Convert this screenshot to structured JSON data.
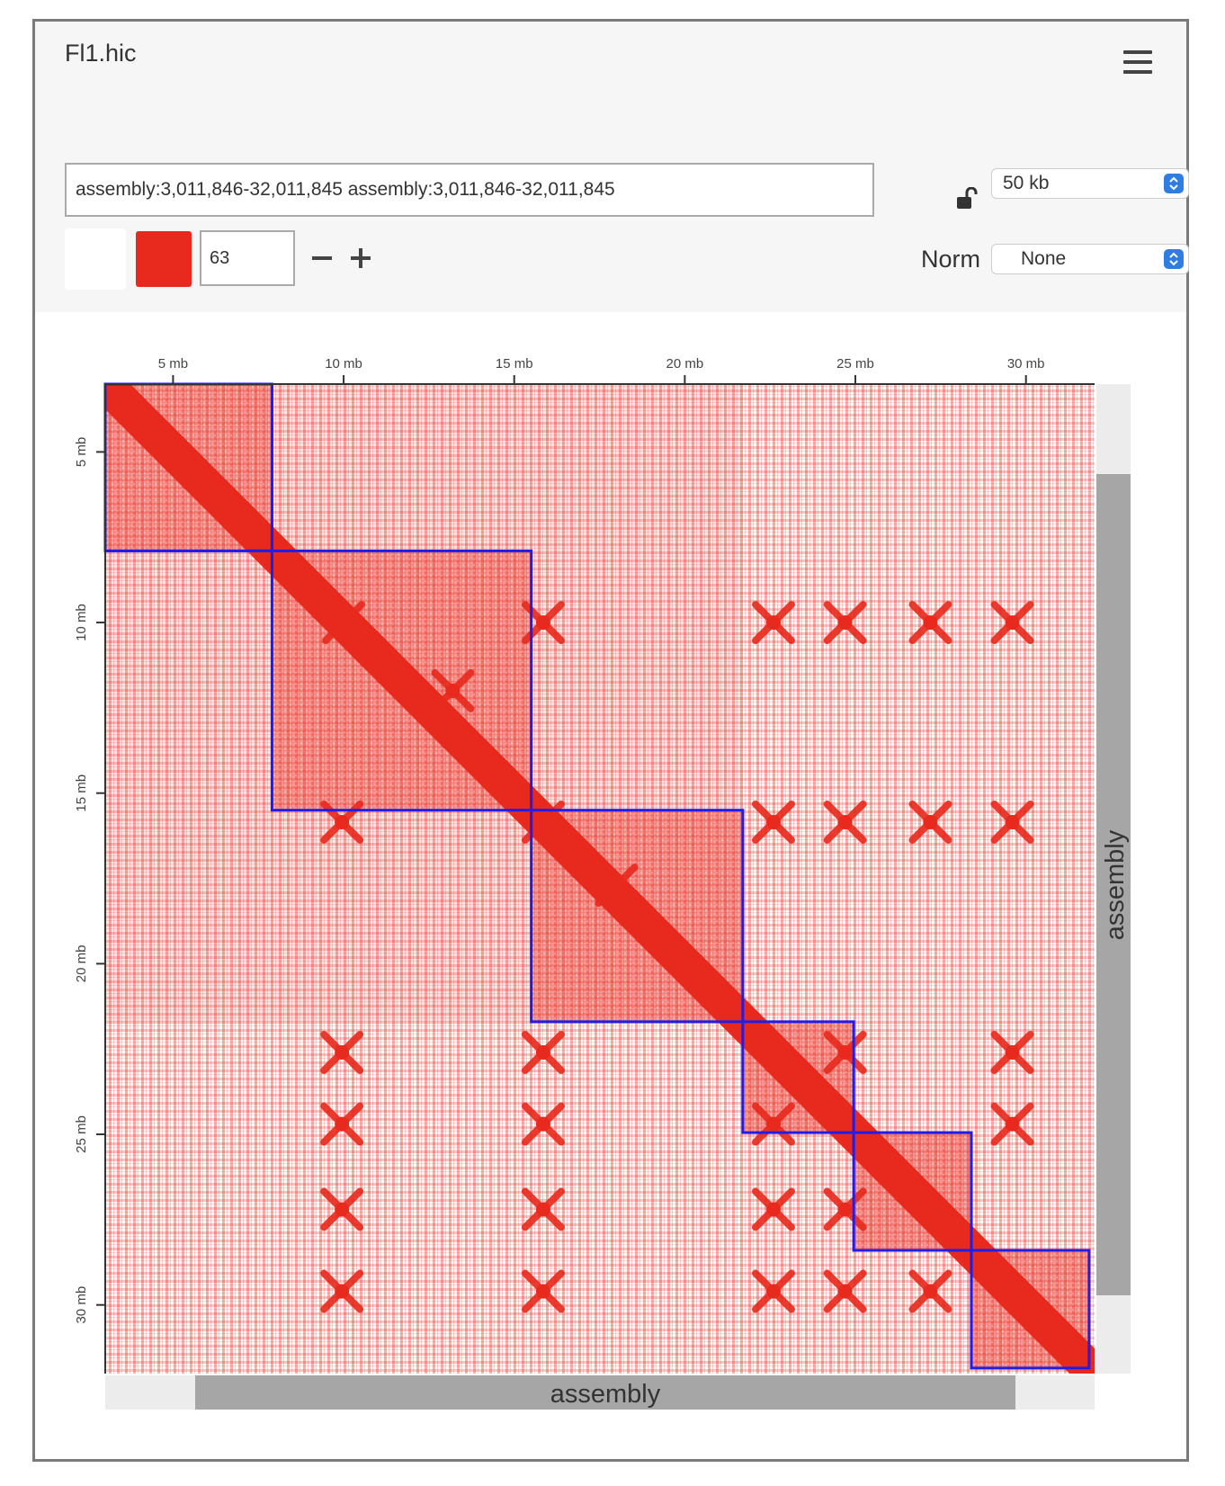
{
  "header": {
    "title": "Fl1.hic",
    "menu_icon": "hamburger-menu-icon"
  },
  "locus": {
    "value": "assembly:3,011,846-32,011,845 assembly:3,011,846-32,011,845"
  },
  "resolution": {
    "lock_icon": "unlocked-padlock-icon",
    "selected": "50 kb"
  },
  "color_controls": {
    "background_color": "#ffffff",
    "foreground_color": "#e8291d",
    "threshold": "63",
    "minus_label": "−",
    "plus_label": "+"
  },
  "normalization": {
    "label": "Norm",
    "selected": "None"
  },
  "heatmap": {
    "x_ticks": [
      "5 mb",
      "10 mb",
      "15 mb",
      "20 mb",
      "25 mb",
      "30 mb"
    ],
    "y_ticks": [
      "5 mb",
      "10 mb",
      "15 mb",
      "20 mb",
      "25 mb",
      "30 mb"
    ],
    "tick_values_mb": [
      5,
      10,
      15,
      20,
      25,
      30
    ],
    "range_mb": [
      3.011846,
      32.011845
    ],
    "bottom_track_label": "assembly",
    "right_track_label": "assembly",
    "block_boundaries_mb": [
      3.011846,
      7.9,
      15.5,
      21.7,
      24.95,
      28.4,
      31.85
    ],
    "colors": {
      "contact": "#e8291d",
      "boundary": "#1e1ee6",
      "track": "#a6a6a6",
      "track_bg": "#ececec"
    }
  }
}
